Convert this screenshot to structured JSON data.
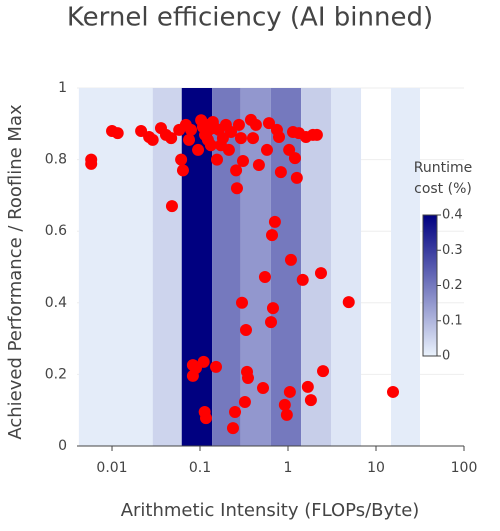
{
  "chart_data": {
    "type": "scatter",
    "title": "Kernel efficiency (AI binned)",
    "x_label": "Arithmetic Intensity (FLOPs/Byte)",
    "y_label": "Achieved Performance / Roofline Max",
    "x_log": true,
    "xlim": [
      0.004,
      100
    ],
    "xticks": [
      0.01,
      0.1,
      1,
      10,
      100
    ],
    "ylim": [
      0,
      1
    ],
    "yticks": [
      0,
      0.2,
      0.4,
      0.6,
      0.8,
      1
    ],
    "grid": true,
    "heatmap": {
      "bins": [
        0.0042,
        0.029,
        0.062,
        0.137,
        0.29,
        0.64,
        1.41,
        3.08,
        6.76,
        14.8,
        31.6
      ],
      "values": [
        0.01,
        0.05,
        0.4,
        0.2,
        0.15,
        0.2,
        0.06,
        0.02,
        null,
        0.01
      ]
    },
    "colorbar": {
      "title": "Runtime cost (%)",
      "colorscale": [
        "#eaf2fc",
        "#000080"
      ],
      "lim": [
        0,
        0.4
      ],
      "ticks": [
        0,
        0.1,
        0.2,
        0.3,
        0.4
      ]
    },
    "color": "#ff0000",
    "x": [
      0.0058,
      0.0058,
      0.01,
      0.0116,
      0.0214,
      0.0264,
      0.029,
      0.036,
      0.041,
      0.047,
      0.048,
      0.058,
      0.061,
      0.064,
      0.069,
      0.075,
      0.079,
      0.083,
      0.09,
      0.095,
      0.103,
      0.108,
      0.114,
      0.117,
      0.123,
      0.126,
      0.133,
      0.14,
      0.148,
      0.156,
      0.083,
      0.11,
      0.113,
      0.117,
      0.152,
      0.164,
      0.173,
      0.182,
      0.197,
      0.213,
      0.225,
      0.237,
      0.25,
      0.257,
      0.263,
      0.277,
      0.292,
      0.3,
      0.308,
      0.333,
      0.342,
      0.351,
      0.324,
      0.379,
      0.4,
      0.432,
      0.467,
      0.52,
      0.547,
      0.577,
      0.608,
      0.641,
      0.658,
      0.675,
      0.71,
      0.749,
      0.79,
      0.83,
      0.92,
      0.97,
      1.03,
      1.05,
      1.08,
      1.14,
      1.2,
      1.26,
      1.33,
      1.47,
      1.6,
      1.68,
      1.82,
      1.92,
      2.13,
      2.37,
      2.5,
      4.9,
      15.6
    ],
    "values": [
      0.8,
      0.788,
      0.88,
      0.874,
      0.88,
      0.863,
      0.855,
      0.888,
      0.869,
      0.86,
      0.67,
      0.883,
      0.8,
      0.77,
      0.897,
      0.855,
      0.883,
      0.226,
      0.218,
      0.827,
      0.91,
      0.891,
      0.869,
      0.897,
      0.855,
      0.883,
      0.84,
      0.905,
      0.888,
      0.8,
      0.196,
      0.235,
      0.095,
      0.078,
      0.221,
      0.883,
      0.84,
      0.86,
      0.897,
      0.827,
      0.877,
      0.05,
      0.095,
      0.77,
      0.72,
      0.897,
      0.86,
      0.4,
      0.796,
      0.324,
      0.207,
      0.19,
      0.123,
      0.911,
      0.86,
      0.897,
      0.785,
      0.162,
      0.472,
      0.827,
      0.902,
      0.346,
      0.589,
      0.385,
      0.626,
      0.883,
      0.863,
      0.765,
      0.115,
      0.087,
      0.827,
      0.151,
      0.52,
      0.877,
      0.804,
      0.749,
      0.874,
      0.464,
      0.863,
      0.165,
      0.128,
      0.869,
      0.869,
      0.483,
      0.209,
      0.402,
      0.151
    ]
  }
}
